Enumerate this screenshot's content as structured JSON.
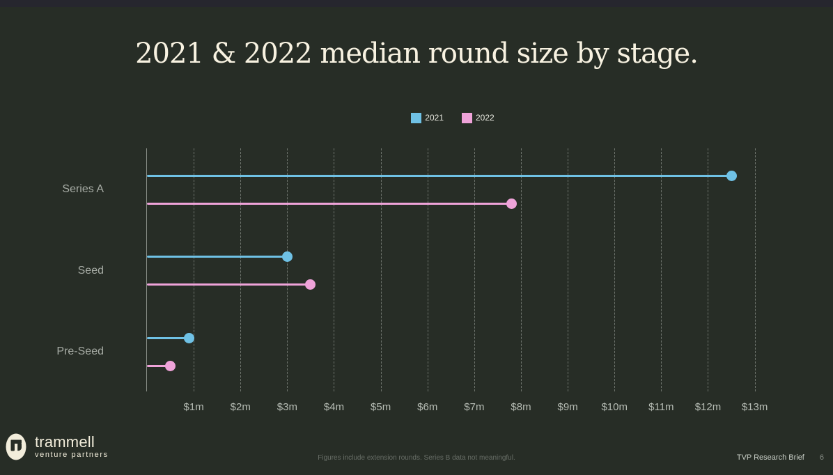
{
  "slide": {
    "title": "2021 & 2022 median round size by stage.",
    "footnote": "Figures include extension rounds. Series B data not meaningful.",
    "footer_label": "TVP Research Brief",
    "page_number": "6",
    "logo": {
      "name": "trammell",
      "subtitle": "venture partners"
    }
  },
  "colors": {
    "background": "#272d26",
    "top_bar": "#26262e",
    "title": "#f8f2e1",
    "series_2021": "#6fc1e5",
    "series_2022": "#efa3d9",
    "axis_line": "#8a8f88",
    "gridline": "#6f756e",
    "tick_label": "#b5bbb3",
    "category_label": "#a7aca5",
    "footnote": "#686e67",
    "logo_cream": "#f2eddb"
  },
  "legend": [
    {
      "label": "2021",
      "color": "#6fc1e5"
    },
    {
      "label": "2022",
      "color": "#efa3d9"
    }
  ],
  "chart_data": {
    "type": "bar",
    "subtype": "horizontal-lollipop",
    "title": "2021 & 2022 median round size by stage.",
    "categories": [
      "Series A",
      "Seed",
      "Pre-Seed"
    ],
    "series": [
      {
        "name": "2021",
        "color": "#6fc1e5",
        "values": [
          12.5,
          3.0,
          0.9
        ]
      },
      {
        "name": "2022",
        "color": "#efa3d9",
        "values": [
          7.8,
          3.5,
          0.5
        ]
      }
    ],
    "unit": "$m (millions USD)",
    "x_ticks": [
      "$1m",
      "$2m",
      "$3m",
      "$4m",
      "$5m",
      "$6m",
      "$7m",
      "$8m",
      "$9m",
      "$10m",
      "$11m",
      "$12m",
      "$13m"
    ],
    "xlim": [
      0,
      13.11
    ],
    "ylabel": "",
    "xlabel": "",
    "grid": "dashed-vertical",
    "legend_position": "top-center"
  }
}
